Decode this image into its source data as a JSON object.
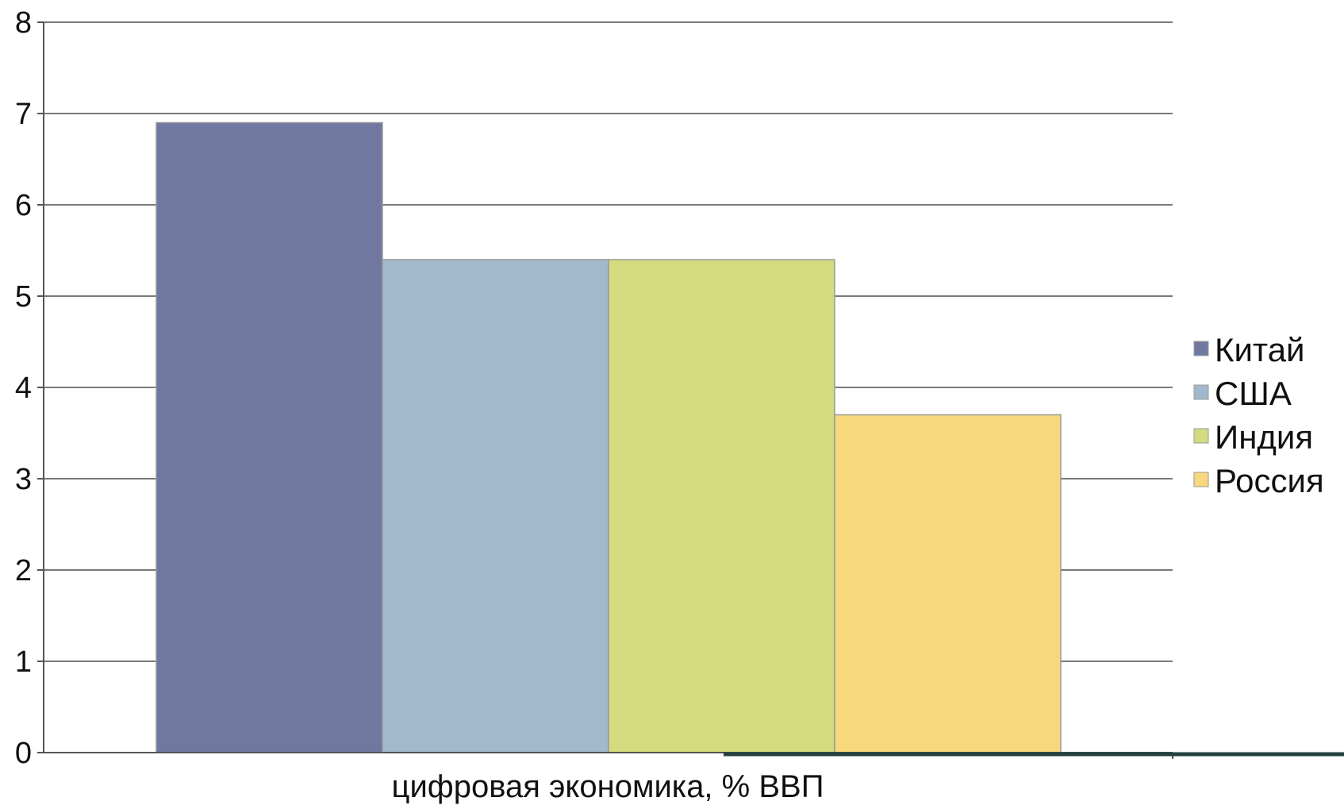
{
  "chart_data": {
    "type": "bar",
    "categories": [
      "цифровая экономика, % ВВП"
    ],
    "series": [
      {
        "name": "Китай",
        "values": [
          6.9
        ],
        "color": "#7078a0"
      },
      {
        "name": "США",
        "values": [
          5.4
        ],
        "color": "#a2b8cd"
      },
      {
        "name": "Индия",
        "values": [
          5.4
        ],
        "color": "#d4da7e"
      },
      {
        "name": "Россия",
        "values": [
          3.7
        ],
        "color": "#f8d87c"
      }
    ],
    "ylim": [
      0,
      8
    ],
    "yticks": [
      "0",
      "1",
      "2",
      "3",
      "4",
      "5",
      "6",
      "7",
      "8"
    ],
    "grid": true,
    "legend_position": "right"
  }
}
